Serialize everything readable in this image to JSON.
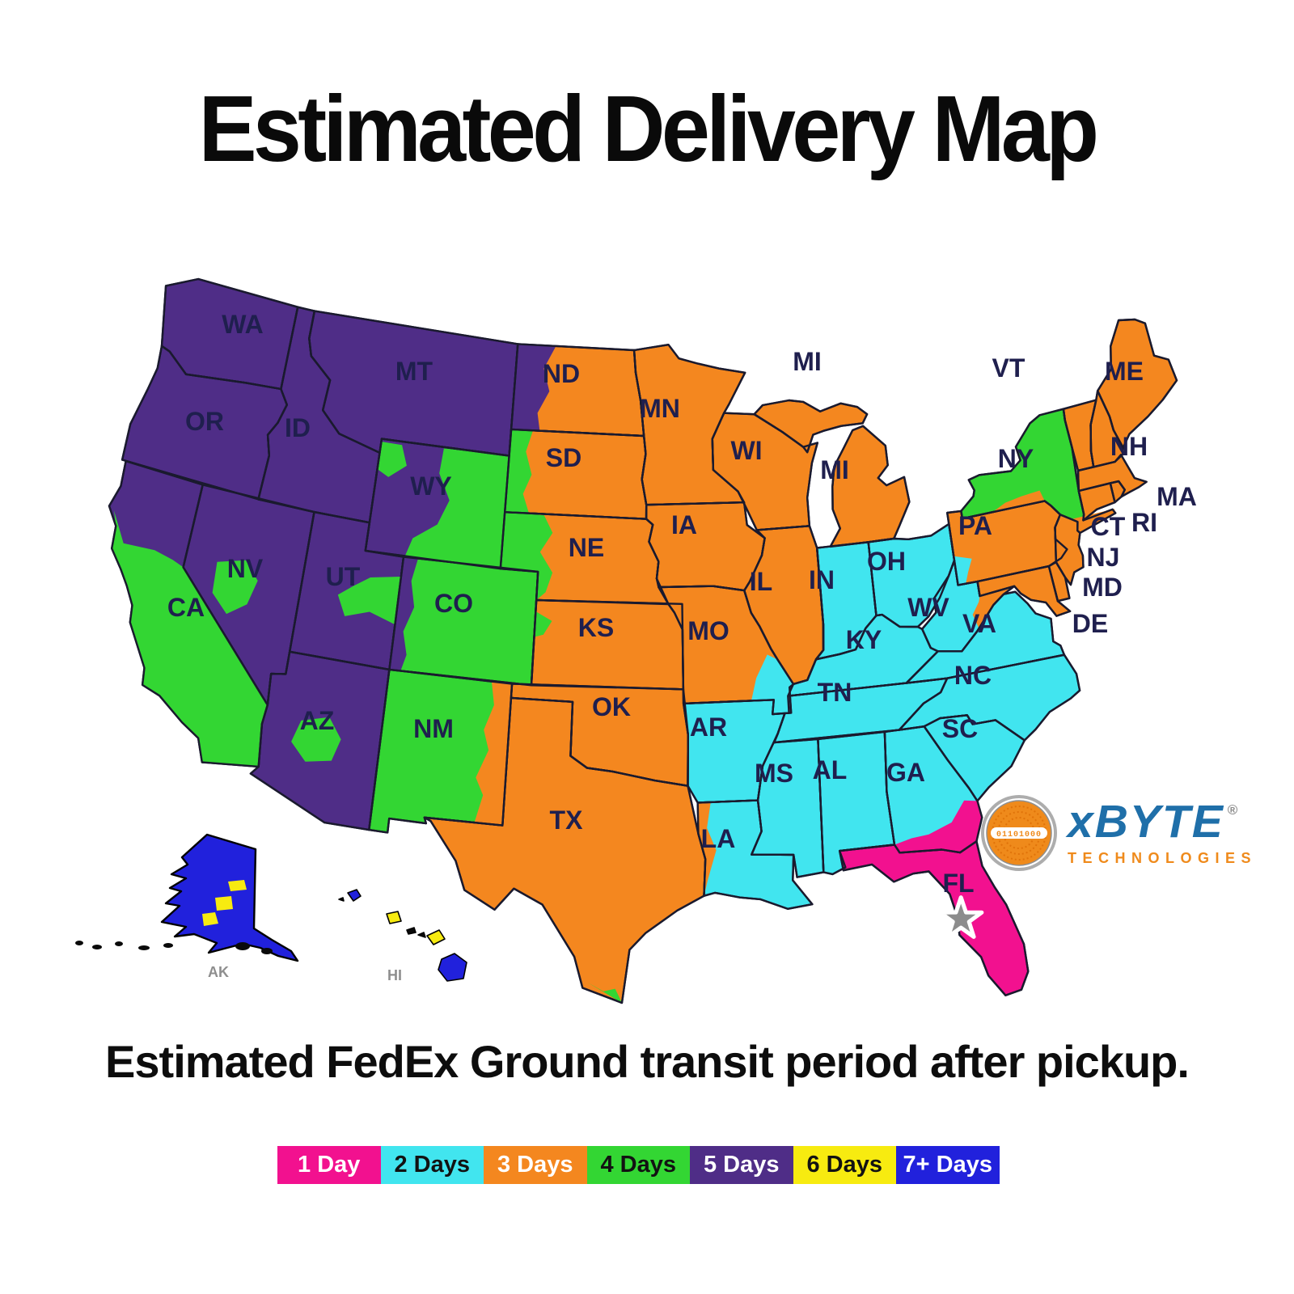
{
  "title": "Estimated Delivery Map",
  "subtitle": "Estimated FedEx Ground transit period after pickup.",
  "legend": [
    {
      "label": "1 Day",
      "days": 1,
      "color": "#F2118F",
      "text_color": "#FFFFFF"
    },
    {
      "label": "2 Days",
      "days": 2,
      "color": "#41E5EF",
      "text_color": "#121212"
    },
    {
      "label": "3 Days",
      "days": 3,
      "color": "#F4871F",
      "text_color": "#FFFFFF"
    },
    {
      "label": "4 Days",
      "days": 4,
      "color": "#33D633",
      "text_color": "#121212"
    },
    {
      "label": "5 Days",
      "days": 5,
      "color": "#4F2D87",
      "text_color": "#FFFFFF"
    },
    {
      "label": "6 Days",
      "days": 6,
      "color": "#F7EB10",
      "text_color": "#121212"
    },
    {
      "label": "7+ Days",
      "days": 7,
      "color": "#2121DC",
      "text_color": "#FFFFFF"
    }
  ],
  "zones": {
    "1": "#F2118F",
    "2": "#41E5EF",
    "3": "#F4871F",
    "4": "#33D633",
    "5": "#4F2D87",
    "6": "#F7EB10",
    "7": "#2121DC"
  },
  "map": {
    "border_color": "#1A1A2E",
    "label_color": "#1F1F4E",
    "inset_label_color": "#8E8E8E",
    "origin_star_color": "#8C8C8C"
  },
  "states": [
    {
      "abbr": "WA",
      "days": 5
    },
    {
      "abbr": "OR",
      "days": 5
    },
    {
      "abbr": "CA",
      "days": 5
    },
    {
      "abbr": "NV",
      "days": 5
    },
    {
      "abbr": "ID",
      "days": 5
    },
    {
      "abbr": "MT",
      "days": 5
    },
    {
      "abbr": "WY",
      "days": 5
    },
    {
      "abbr": "UT",
      "days": 5
    },
    {
      "abbr": "CO",
      "days": 4
    },
    {
      "abbr": "AZ",
      "days": 5
    },
    {
      "abbr": "NM",
      "days": 4
    },
    {
      "abbr": "ND",
      "days": 3
    },
    {
      "abbr": "SD",
      "days": 3
    },
    {
      "abbr": "NE",
      "days": 3
    },
    {
      "abbr": "KS",
      "days": 3
    },
    {
      "abbr": "OK",
      "days": 3
    },
    {
      "abbr": "TX",
      "days": 3
    },
    {
      "abbr": "MN",
      "days": 3
    },
    {
      "abbr": "IA",
      "days": 3
    },
    {
      "abbr": "MO",
      "days": 3
    },
    {
      "abbr": "AR",
      "days": 2
    },
    {
      "abbr": "LA",
      "days": 2
    },
    {
      "abbr": "WI",
      "days": 3
    },
    {
      "abbr": "IL",
      "days": 3
    },
    {
      "abbr": "MI",
      "days": 3
    },
    {
      "abbr": "IN",
      "days": 2
    },
    {
      "abbr": "OH",
      "days": 2
    },
    {
      "abbr": "KY",
      "days": 2
    },
    {
      "abbr": "TN",
      "days": 2
    },
    {
      "abbr": "MS",
      "days": 2
    },
    {
      "abbr": "AL",
      "days": 2
    },
    {
      "abbr": "GA",
      "days": 2
    },
    {
      "abbr": "FL",
      "days": 1
    },
    {
      "abbr": "WV",
      "days": 2
    },
    {
      "abbr": "VA",
      "days": 2
    },
    {
      "abbr": "NC",
      "days": 2
    },
    {
      "abbr": "SC",
      "days": 2
    },
    {
      "abbr": "PA",
      "days": 3
    },
    {
      "abbr": "NY",
      "days": 4
    },
    {
      "abbr": "VT",
      "days": 3
    },
    {
      "abbr": "NH",
      "days": 3
    },
    {
      "abbr": "ME",
      "days": 3
    },
    {
      "abbr": "MA",
      "days": 3
    },
    {
      "abbr": "RI",
      "days": 3
    },
    {
      "abbr": "CT",
      "days": 3
    },
    {
      "abbr": "NJ",
      "days": 3
    },
    {
      "abbr": "DE",
      "days": 3
    },
    {
      "abbr": "MD",
      "days": 3
    },
    {
      "abbr": "AK",
      "days": 7,
      "patch_days": 6
    },
    {
      "abbr": "HI",
      "days": 7,
      "patch_days": 6
    }
  ],
  "patches": [
    {
      "id": "CA-south",
      "state": "CA",
      "days": 4
    },
    {
      "id": "NV-central",
      "state": "NV",
      "days": 4
    },
    {
      "id": "UT-east",
      "state": "UT",
      "days": 4
    },
    {
      "id": "AZ-central",
      "state": "AZ",
      "days": 4
    },
    {
      "id": "WY-northwest",
      "state": "WY",
      "days": 4
    },
    {
      "id": "WY-east",
      "state": "WY",
      "days": 4
    },
    {
      "id": "CO-west",
      "state": "CO",
      "days": 5
    },
    {
      "id": "ND-west",
      "state": "ND",
      "days": 5
    },
    {
      "id": "SD-west",
      "state": "SD",
      "days": 4
    },
    {
      "id": "NE-west",
      "state": "NE",
      "days": 4
    },
    {
      "id": "KS-west",
      "state": "KS",
      "days": 4
    },
    {
      "id": "NM-east",
      "state": "NM",
      "days": 3
    },
    {
      "id": "TX-south-tip",
      "state": "TX",
      "days": 4
    },
    {
      "id": "MO-southeast",
      "state": "MO",
      "days": 2
    },
    {
      "id": "LA-west",
      "state": "LA",
      "days": 3
    },
    {
      "id": "WV-east",
      "state": "WV",
      "days": 3
    },
    {
      "id": "PA-southwest",
      "state": "PA",
      "days": 2
    },
    {
      "id": "NY-south",
      "state": "NY",
      "days": 3
    },
    {
      "id": "NY-nyc-longisland",
      "state": "NY",
      "days": 3
    },
    {
      "id": "GA-south",
      "state": "GA",
      "days": 1
    }
  ],
  "logo": {
    "brand": "xBYTE",
    "registered": "®",
    "tagline": "TECHNOLOGIES",
    "badge_code": "01101000",
    "brand_color": "#1F6FA9",
    "accent_color": "#EF8A1B"
  }
}
